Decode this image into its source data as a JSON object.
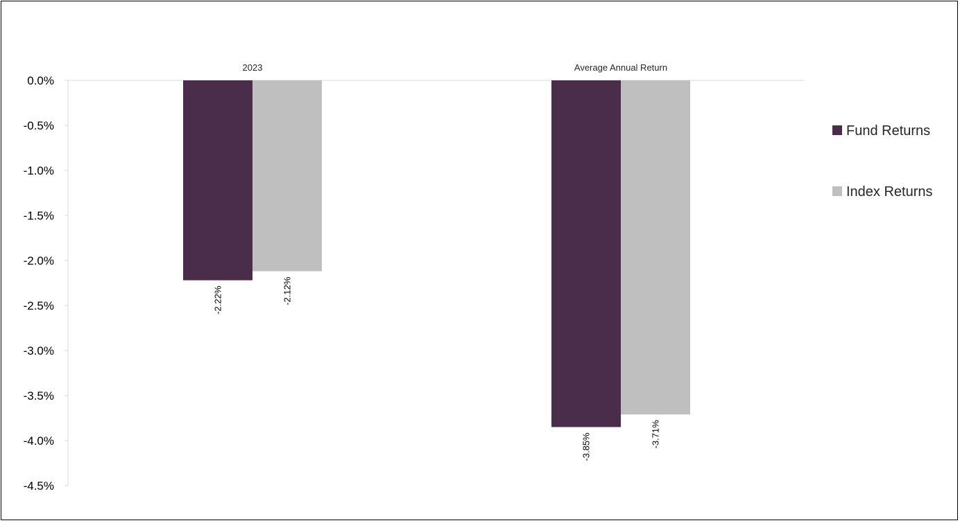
{
  "chart_data": {
    "type": "bar",
    "title": "",
    "xlabel": "",
    "ylabel": "",
    "categories": [
      "2023",
      "Average Annual Return"
    ],
    "series": [
      {
        "name": "Fund Returns",
        "values": [
          -2.22,
          -3.85
        ],
        "labels": [
          "-2.22%",
          "-3.85%"
        ],
        "color": "#4a2d4a"
      },
      {
        "name": "Index Returns",
        "values": [
          -2.12,
          -3.71
        ],
        "labels": [
          "-2.12%",
          "-3.71%"
        ],
        "color": "#bfbfbf"
      }
    ],
    "ylim": [
      -4.5,
      0
    ],
    "yticks": [
      0,
      -0.5,
      -1.0,
      -1.5,
      -2.0,
      -2.5,
      -3.0,
      -3.5,
      -4.0,
      -4.5
    ],
    "ytick_labels": [
      "0.0%",
      "-0.5%",
      "-1.0%",
      "-1.5%",
      "-2.0%",
      "-2.5%",
      "-3.0%",
      "-3.5%",
      "-4.0%",
      "-4.5%"
    ],
    "grid": false,
    "legend_position": "right",
    "category_label_position": "top"
  }
}
